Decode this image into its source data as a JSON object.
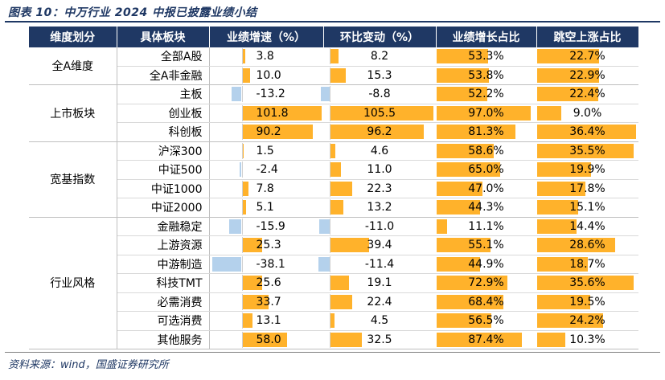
{
  "caption": "图表 10：中万行业 2024 中报已披露业绩小结",
  "source": "资料来源：wind，国盛证券研究所",
  "colors": {
    "header_bg": "#1f3864",
    "positive_bar": "#ffb22b",
    "negative_bar": "#b4d1ec"
  },
  "headers": [
    "维度划分",
    "具体板块",
    "业绩增速（%）",
    "环比变动（%）",
    "业绩增长占比",
    "跳空上涨占比"
  ],
  "groups": [
    {
      "name": "全A维度",
      "rows": [
        {
          "board": "全部A股",
          "growth": "3.8",
          "growth_v": 3.8,
          "qoq": "8.2",
          "qoq_v": 8.2,
          "share": "53.3%",
          "share_v": 53.3,
          "gap": "22.7%",
          "gap_v": 22.7
        },
        {
          "board": "全A非金融",
          "growth": "10.0",
          "growth_v": 10.0,
          "qoq": "15.3",
          "qoq_v": 15.3,
          "share": "53.8%",
          "share_v": 53.8,
          "gap": "22.9%",
          "gap_v": 22.9
        }
      ]
    },
    {
      "name": "上市板块",
      "rows": [
        {
          "board": "主板",
          "growth": "-13.2",
          "growth_v": -13.2,
          "qoq": "-8.8",
          "qoq_v": -8.8,
          "share": "52.2%",
          "share_v": 52.2,
          "gap": "22.4%",
          "gap_v": 22.4
        },
        {
          "board": "创业板",
          "growth": "101.8",
          "growth_v": 101.8,
          "qoq": "105.5",
          "qoq_v": 105.5,
          "share": "97.0%",
          "share_v": 97.0,
          "gap": "9.0%",
          "gap_v": 9.0
        },
        {
          "board": "科创板",
          "growth": "90.2",
          "growth_v": 90.2,
          "qoq": "96.2",
          "qoq_v": 96.2,
          "share": "81.3%",
          "share_v": 81.3,
          "gap": "36.4%",
          "gap_v": 36.4
        }
      ]
    },
    {
      "name": "宽基指数",
      "rows": [
        {
          "board": "沪深300",
          "growth": "1.5",
          "growth_v": 1.5,
          "qoq": "4.6",
          "qoq_v": 4.6,
          "share": "58.6%",
          "share_v": 58.6,
          "gap": "35.5%",
          "gap_v": 35.5
        },
        {
          "board": "中证500",
          "growth": "-2.4",
          "growth_v": -2.4,
          "qoq": "11.0",
          "qoq_v": 11.0,
          "share": "65.0%",
          "share_v": 65.0,
          "gap": "19.9%",
          "gap_v": 19.9
        },
        {
          "board": "中证1000",
          "growth": "7.8",
          "growth_v": 7.8,
          "qoq": "22.3",
          "qoq_v": 22.3,
          "share": "47.0%",
          "share_v": 47.0,
          "gap": "17.8%",
          "gap_v": 17.8
        },
        {
          "board": "中证2000",
          "growth": "5.1",
          "growth_v": 5.1,
          "qoq": "13.2",
          "qoq_v": 13.2,
          "share": "44.3%",
          "share_v": 44.3,
          "gap": "15.1%",
          "gap_v": 15.1
        }
      ]
    },
    {
      "name": "行业风格",
      "rows": [
        {
          "board": "金融稳定",
          "growth": "-15.9",
          "growth_v": -15.9,
          "qoq": "-11.0",
          "qoq_v": -11.0,
          "share": "11.1%",
          "share_v": 11.1,
          "gap": "14.4%",
          "gap_v": 14.4
        },
        {
          "board": "上游资源",
          "growth": "25.3",
          "growth_v": 25.3,
          "qoq": "39.4",
          "qoq_v": 39.4,
          "share": "55.1%",
          "share_v": 55.1,
          "gap": "28.6%",
          "gap_v": 28.6
        },
        {
          "board": "中游制造",
          "growth": "-38.1",
          "growth_v": -38.1,
          "qoq": "-11.4",
          "qoq_v": -11.4,
          "share": "44.9%",
          "share_v": 44.9,
          "gap": "18.7%",
          "gap_v": 18.7
        },
        {
          "board": "科技TMT",
          "growth": "25.6",
          "growth_v": 25.6,
          "qoq": "19.1",
          "qoq_v": 19.1,
          "share": "72.9%",
          "share_v": 72.9,
          "gap": "35.6%",
          "gap_v": 35.6
        },
        {
          "board": "必需消费",
          "growth": "33.7",
          "growth_v": 33.7,
          "qoq": "22.4",
          "qoq_v": 22.4,
          "share": "68.4%",
          "share_v": 68.4,
          "gap": "19.5%",
          "gap_v": 19.5
        },
        {
          "board": "可选消费",
          "growth": "13.1",
          "growth_v": 13.1,
          "qoq": "4.5",
          "qoq_v": 4.5,
          "share": "56.5%",
          "share_v": 56.5,
          "gap": "24.2%",
          "gap_v": 24.2
        },
        {
          "board": "其他服务",
          "growth": "58.0",
          "growth_v": 58.0,
          "qoq": "32.5",
          "qoq_v": 32.5,
          "share": "87.4%",
          "share_v": 87.4,
          "gap": "10.3%",
          "gap_v": 10.3
        }
      ]
    }
  ]
}
